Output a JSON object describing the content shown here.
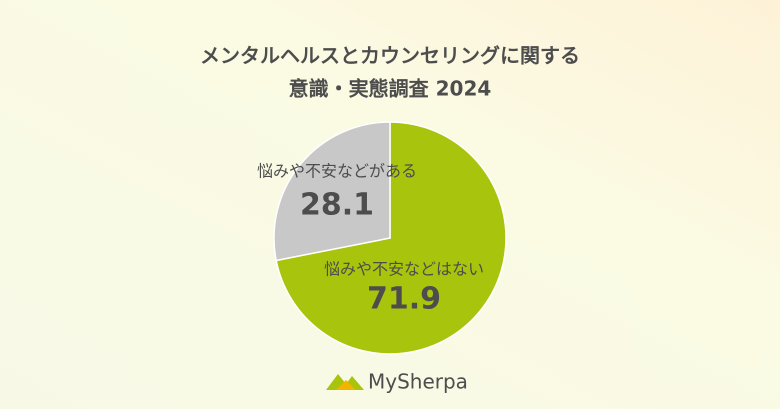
{
  "chart_data": {
    "type": "pie",
    "title": [
      "メンタルヘルスとカウンセリングに関する",
      "意識・実態調査 2024"
    ],
    "categories": [
      "悩みや不安などはない",
      "悩みや不安などがある"
    ],
    "values": [
      71.9,
      28.1
    ],
    "colors": [
      "#a9c40c",
      "#c8c8c8"
    ]
  },
  "brand": "MySherpa"
}
